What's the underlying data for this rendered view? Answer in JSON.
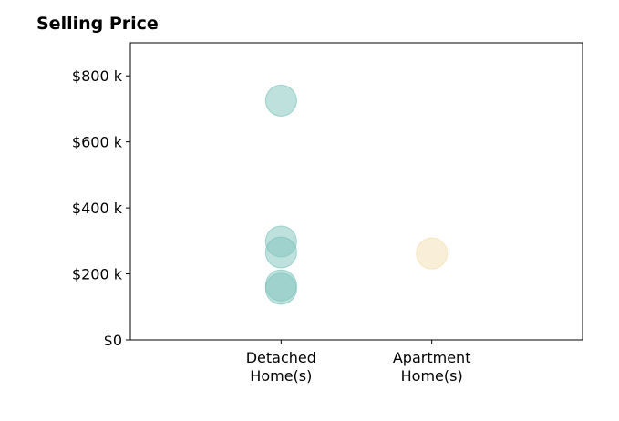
{
  "title": "Selling Price",
  "chart_data": {
    "type": "scatter",
    "title": "Selling Price",
    "xlabel": "",
    "ylabel": "",
    "categories": [
      "Detached Home(s)",
      "Apartment Home(s)"
    ],
    "category_labels": [
      [
        "Detached",
        "Home(s)"
      ],
      [
        "Apartment",
        "Home(s)"
      ]
    ],
    "yticks": [
      0,
      200000,
      400000,
      600000,
      800000
    ],
    "ytick_labels": [
      "$0",
      "$200 k",
      "$400 k",
      "$600 k",
      "$800 k"
    ],
    "ylim": [
      0,
      900000
    ],
    "grid": false,
    "series": [
      {
        "category": "Detached Home(s)",
        "color": "#7fc4bb",
        "values": [
          725000,
          298000,
          265000,
          165000,
          155000
        ]
      },
      {
        "category": "Apartment Home(s)",
        "color": "#f3ddb0",
        "values": [
          262000
        ]
      }
    ]
  }
}
